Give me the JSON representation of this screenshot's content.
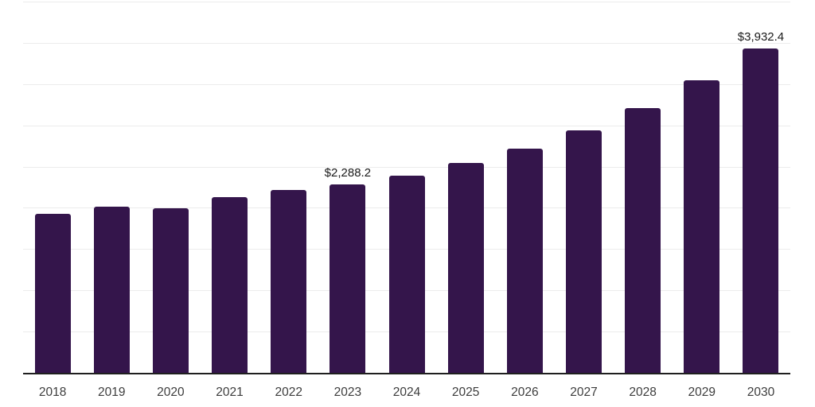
{
  "chart_data": {
    "type": "bar",
    "title": "",
    "categories": [
      "2018",
      "2019",
      "2020",
      "2021",
      "2022",
      "2023",
      "2024",
      "2025",
      "2026",
      "2027",
      "2028",
      "2029",
      "2030"
    ],
    "values": [
      1925,
      2016,
      1990,
      2131,
      2218,
      2288.2,
      2390,
      2544,
      2722,
      2938,
      3206,
      3542,
      3932.4
    ],
    "data_labels": [
      "",
      "",
      "",
      "",
      "",
      "$2,288.2",
      "",
      "",
      "",
      "",
      "",
      "",
      "$3,932.4"
    ],
    "xlabel": "",
    "ylabel": "",
    "ylim": [
      0,
      4500
    ],
    "gridline_step": 500,
    "grid": true,
    "legend": false,
    "y_tick_labels_visible": false
  },
  "style": {
    "background": "#ffffff",
    "bar_color": "#34154b",
    "gridline_color": "#ececec",
    "axis_line_color": "#1f1f1f",
    "data_label_color": "#1a1a1a",
    "tick_label_color": "#3d3d3d"
  }
}
